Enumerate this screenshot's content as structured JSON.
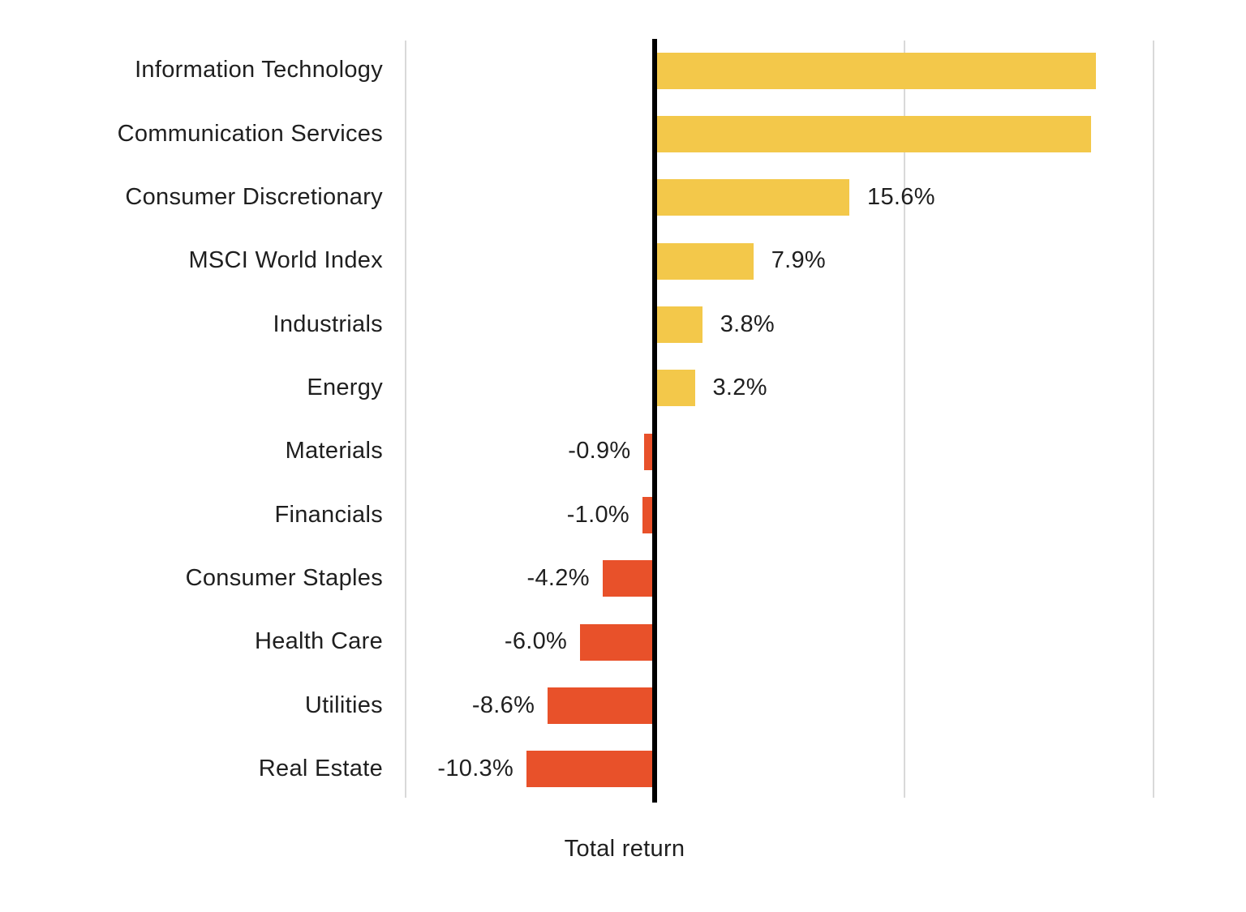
{
  "chart_data": {
    "type": "bar",
    "orientation": "horizontal",
    "title": "",
    "xlabel": "Total return",
    "ylabel": "",
    "categories": [
      "Information Technology",
      "Communication Services",
      "Consumer Discretionary",
      "MSCI World Index",
      "Industrials",
      "Energy",
      "Materials",
      "Financials",
      "Consumer Staples",
      "Health Care",
      "Utilities",
      "Real Estate"
    ],
    "values": [
      35.4,
      35.0,
      15.6,
      7.9,
      3.8,
      3.2,
      -0.9,
      -1.0,
      -4.2,
      -6.0,
      -8.6,
      -10.3
    ],
    "value_labels": [
      null,
      null,
      "15.6%",
      "7.9%",
      "3.8%",
      "3.2%",
      "-0.9%",
      "-1.0%",
      "-4.2%",
      "-6.0%",
      "-8.6%",
      "-10.3%"
    ],
    "xlim": [
      -20,
      40
    ],
    "gridlines_pct": [
      -20,
      20,
      40
    ],
    "zero_line_pct": 0,
    "grid": true,
    "legend": null,
    "colors": {
      "positive_bar": "#F3C84A",
      "negative_bar": "#E8512A",
      "zero_axis": "#000000",
      "gridline": "#D9D9D9",
      "text": "#1F1F1F"
    }
  }
}
